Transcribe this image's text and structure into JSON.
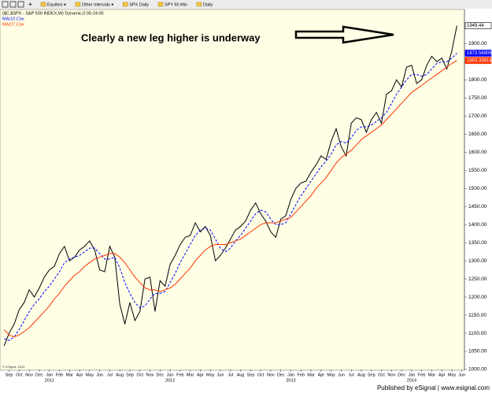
{
  "toolbar": {
    "items": [
      "Equities ▾",
      "Other Intervals ▾",
      "SPX Daily",
      "SPY 60 Min",
      "Daily"
    ]
  },
  "chart_data": {
    "type": "line",
    "annotation": "Clearly a new leg higher is underway",
    "copyright": "© eSignal, 2014",
    "footer": "Published by eSignal | www.esignal.com",
    "background": "#ffffe6",
    "grid": false,
    "categories": [
      null,
      "Sep",
      null,
      "Oct",
      null,
      "Nov",
      null,
      "Dec",
      null,
      "Jan",
      null,
      "Feb",
      null,
      "Mar",
      null,
      "Apr",
      null,
      "May",
      null,
      "Jun",
      null,
      "Jul",
      null,
      "Aug",
      null,
      "Sep",
      null,
      "Oct",
      null,
      "Nov",
      null,
      "Dec",
      null,
      "Jan",
      null,
      "Feb",
      null,
      "Mar",
      null,
      "Apr",
      null,
      "May",
      null,
      "Jun",
      null,
      "Jul",
      null,
      "Aug",
      null,
      "Sep",
      null,
      "Oct",
      null,
      "Nov",
      null,
      "Dec",
      null,
      "Jan",
      null,
      "Feb",
      null,
      "Mar",
      null,
      "Apr",
      null,
      "May",
      null,
      "Jun",
      null,
      "Jul",
      null,
      "Aug",
      null,
      "Sep",
      null,
      "Oct",
      null,
      "Nov",
      null,
      "Dec",
      null,
      "Jan",
      null,
      "Feb",
      null,
      "Mar",
      null,
      "Apr",
      null,
      "May",
      null,
      "Jun"
    ],
    "years": [
      "2011",
      "2012",
      "2013",
      "2014"
    ],
    "ylim": [
      1000,
      1990
    ],
    "yticks": [
      {
        "value": 1000,
        "label": "1000.00"
      },
      {
        "value": 1050,
        "label": "1050.00"
      },
      {
        "value": 1100,
        "label": "1100.00"
      },
      {
        "value": 1150,
        "label": "1150.00"
      },
      {
        "value": 1200,
        "label": "1200.00"
      },
      {
        "value": 1250,
        "label": "1250.00"
      },
      {
        "value": 1300,
        "label": "1300.00"
      },
      {
        "value": 1350,
        "label": "1350.00"
      },
      {
        "value": 1400,
        "label": "1400.00"
      },
      {
        "value": 1450,
        "label": "1450.00"
      },
      {
        "value": 1500,
        "label": "1500.00"
      },
      {
        "value": 1550,
        "label": "1550.00"
      },
      {
        "value": 1600,
        "label": "1600.00"
      },
      {
        "value": 1650,
        "label": "1650.00"
      },
      {
        "value": 1700,
        "label": "1700.00"
      },
      {
        "value": 1750,
        "label": "1750.00"
      },
      {
        "value": 1800,
        "label": "1800.00"
      },
      {
        "value": 1850,
        "label": "1850.00"
      },
      {
        "value": 1900,
        "label": "1900.00"
      }
    ],
    "series": [
      {
        "name": "($C,$SPX - S&P 500 INDEX,W) Dynamic,0:00-24:00",
        "color": "#000000",
        "dash": false,
        "values": [
          1065,
          1100,
          1125,
          1165,
          1185,
          1220,
          1200,
          1225,
          1255,
          1275,
          1285,
          1320,
          1340,
          1300,
          1310,
          1330,
          1340,
          1355,
          1330,
          1275,
          1270,
          1340,
          1310,
          1180,
          1125,
          1185,
          1135,
          1160,
          1250,
          1255,
          1160,
          1245,
          1230,
          1290,
          1315,
          1345,
          1365,
          1370,
          1405,
          1380,
          1395,
          1370,
          1300,
          1315,
          1335,
          1360,
          1385,
          1395,
          1410,
          1440,
          1460,
          1430,
          1410,
          1380,
          1365,
          1415,
          1425,
          1470,
          1500,
          1515,
          1520,
          1545,
          1565,
          1590,
          1580,
          1630,
          1665,
          1615,
          1590,
          1680,
          1695,
          1690,
          1655,
          1690,
          1710,
          1680,
          1760,
          1770,
          1800,
          1780,
          1835,
          1840,
          1790,
          1800,
          1840,
          1865,
          1850,
          1860,
          1830,
          1880,
          1949.44,
          null
        ]
      },
      {
        "name": "MA(10,C)w",
        "color": "#0000ff",
        "dash": true,
        "values": [
          1085,
          1080,
          1090,
          1110,
          1135,
          1160,
          1180,
          1195,
          1215,
          1230,
          1250,
          1270,
          1295,
          1305,
          1310,
          1315,
          1325,
          1335,
          1335,
          1320,
          1305,
          1305,
          1310,
          1280,
          1240,
          1210,
          1185,
          1170,
          1175,
          1195,
          1210,
          1210,
          1215,
          1240,
          1265,
          1295,
          1320,
          1345,
          1370,
          1385,
          1390,
          1385,
          1360,
          1335,
          1325,
          1335,
          1355,
          1370,
          1390,
          1410,
          1430,
          1440,
          1435,
          1415,
          1400,
          1400,
          1405,
          1430,
          1455,
          1480,
          1500,
          1520,
          1540,
          1560,
          1575,
          1595,
          1620,
          1630,
          1625,
          1640,
          1660,
          1670,
          1670,
          1675,
          1685,
          1695,
          1710,
          1735,
          1760,
          1780,
          1800,
          1815,
          1815,
          1810,
          1815,
          1830,
          1845,
          1850,
          1850,
          1860,
          1873.56906,
          null
        ]
      },
      {
        "name": "MA(27,C)w",
        "color": "#ff3300",
        "dash": false,
        "values": [
          1110,
          1095,
          1090,
          1095,
          1105,
          1115,
          1130,
          1145,
          1160,
          1175,
          1195,
          1210,
          1230,
          1245,
          1260,
          1270,
          1285,
          1295,
          1305,
          1310,
          1315,
          1320,
          1320,
          1310,
          1295,
          1275,
          1255,
          1240,
          1225,
          1220,
          1220,
          1215,
          1220,
          1225,
          1235,
          1250,
          1265,
          1280,
          1300,
          1315,
          1330,
          1340,
          1345,
          1345,
          1345,
          1350,
          1355,
          1360,
          1370,
          1380,
          1390,
          1400,
          1405,
          1405,
          1405,
          1410,
          1415,
          1420,
          1435,
          1450,
          1465,
          1480,
          1500,
          1515,
          1530,
          1550,
          1570,
          1585,
          1595,
          1605,
          1620,
          1635,
          1645,
          1655,
          1665,
          1675,
          1690,
          1705,
          1720,
          1735,
          1750,
          1765,
          1775,
          1785,
          1795,
          1805,
          1815,
          1825,
          1835,
          1845,
          1853.33614,
          null
        ]
      }
    ]
  }
}
